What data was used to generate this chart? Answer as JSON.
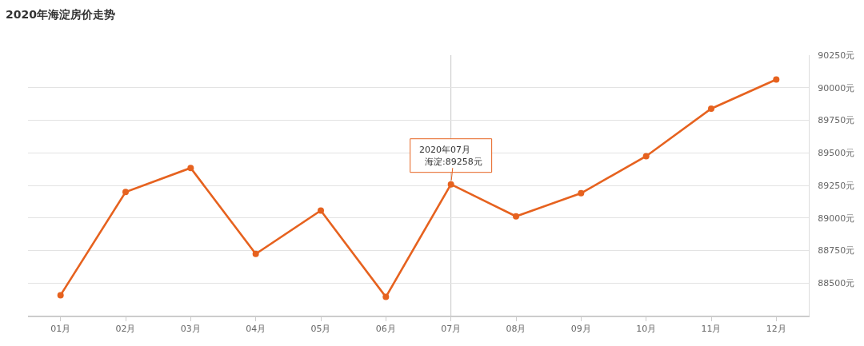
{
  "chart_data": {
    "type": "line",
    "title": "2020年海淀房价走势",
    "categories": [
      "01月",
      "02月",
      "03月",
      "04月",
      "05月",
      "06月",
      "07月",
      "08月",
      "09月",
      "10月",
      "11月",
      "12月"
    ],
    "series": [
      {
        "color": "#e6621f",
        "values": [
          88407,
          89199,
          89384,
          88724,
          89057,
          88394,
          89258,
          89012,
          89190,
          89474,
          89839,
          90063
        ]
      }
    ],
    "ylim": [
      88250,
      90250
    ],
    "yticks": [
      {
        "value": 88500,
        "label": "88500元"
      },
      {
        "value": 88750,
        "label": "88750元"
      },
      {
        "value": 89000,
        "label": "89000元"
      },
      {
        "value": 89250,
        "label": "89250元"
      },
      {
        "value": 89500,
        "label": "89500元"
      },
      {
        "value": 89750,
        "label": "89750元"
      },
      {
        "value": 90000,
        "label": "90000元"
      },
      {
        "value": 90250,
        "label": "90250元"
      }
    ],
    "grid": "y",
    "marker": "circle",
    "line_style": "solid",
    "ref_lines": [
      {
        "axis": "x",
        "value": "07月",
        "color": "#c8c8c8"
      }
    ],
    "annotations": [
      "2020年07月",
      {
        "text": "海淀:89258元",
        "x": "07月",
        "y": 89258
      }
    ]
  }
}
